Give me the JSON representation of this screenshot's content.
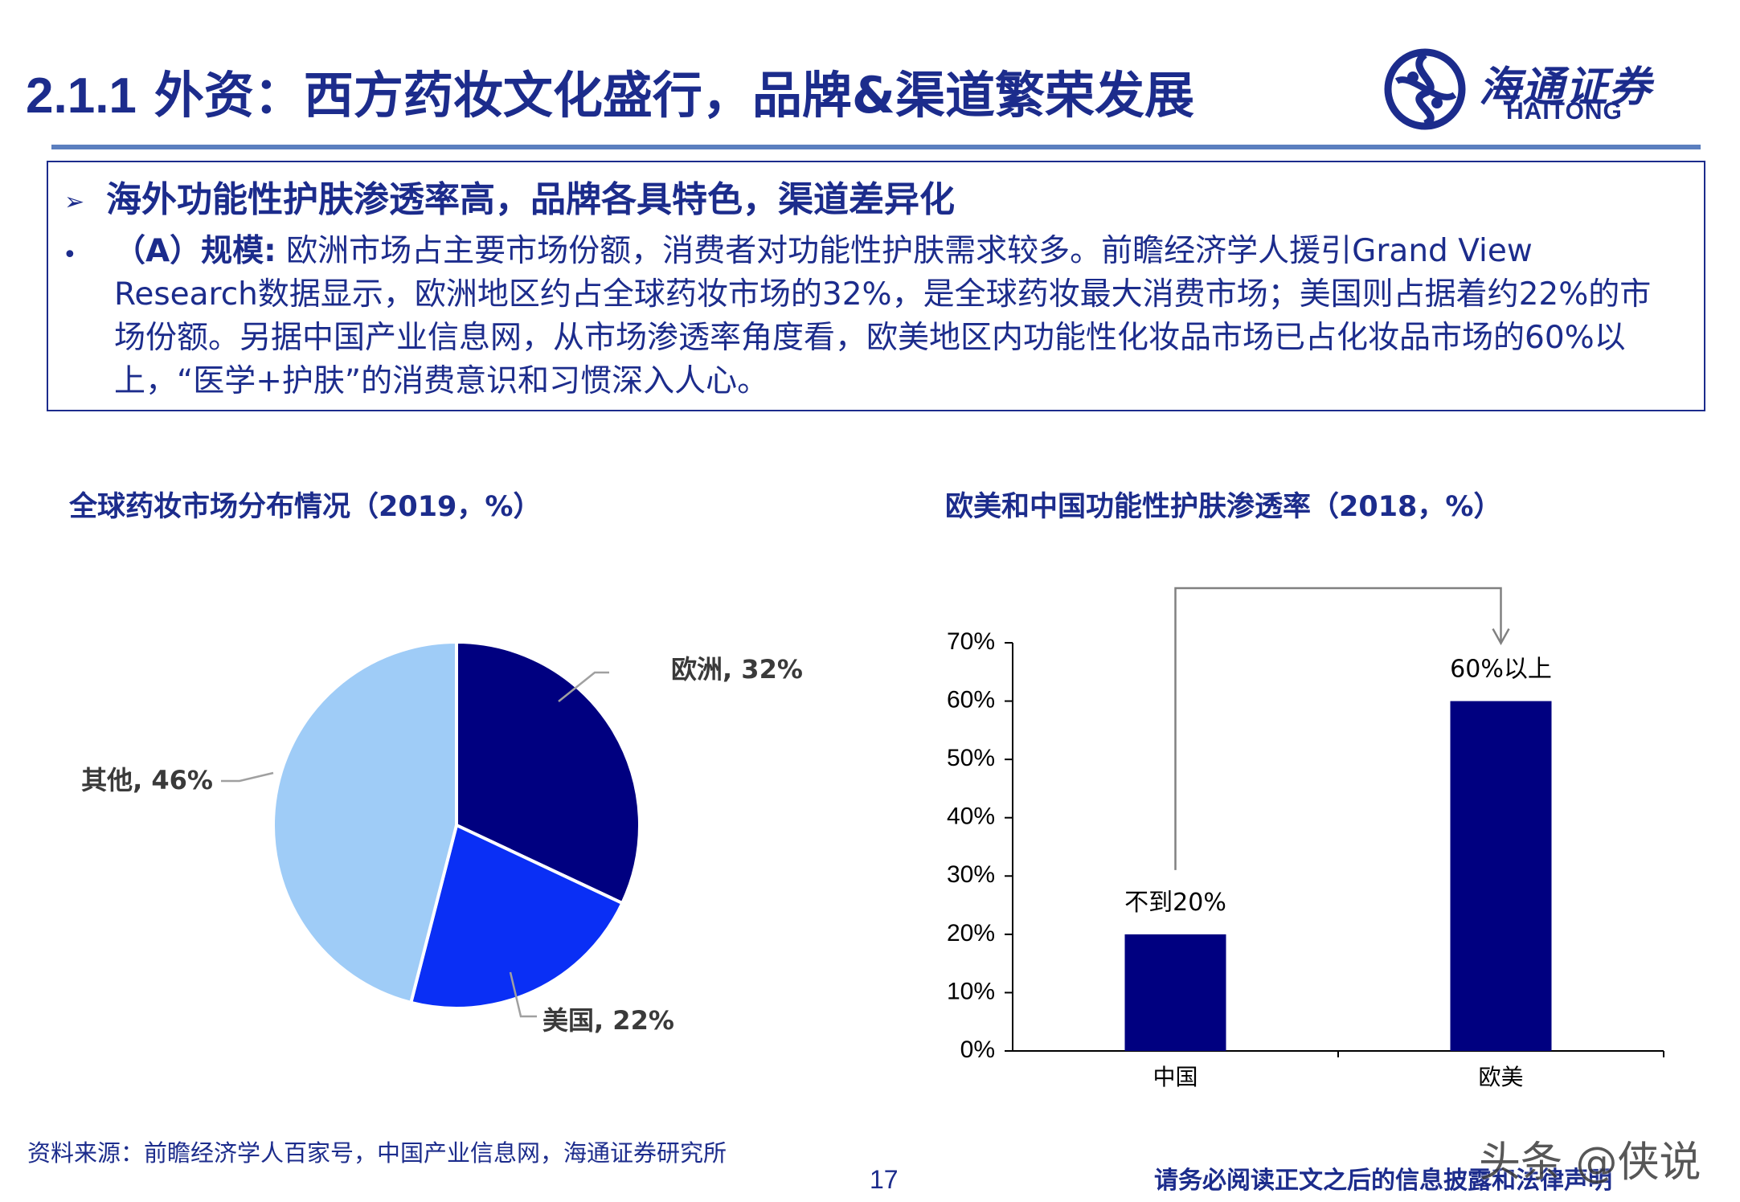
{
  "header": {
    "title_num": "2.1.1",
    "title_text": "外资：西方药妆文化盛行，品牌&渠道繁荣发展",
    "logo_cn": "海通证券",
    "logo_en": "HAITONG",
    "logo_icon": "haitong-swirl-icon"
  },
  "summary": {
    "heading": "海外功能性护肤渗透率高，品牌各具特色，渠道差异化",
    "bullet_label": "（A）规模:",
    "bullet_text": " 欧洲市场占主要市场份额，消费者对功能性护肤需求较多。前瞻经济学人援引Grand View Research数据显示，欧洲地区约占全球药妆市场的32%，是全球药妆最大消费市场；美国则占据着约22%的市场份额。另据中国产业信息网，从市场渗透率角度看，欧美地区内功能性化妆品市场已占化妆品市场的60%以上，“医学+护肤”的消费意识和习惯深入人心。"
  },
  "chart_data": [
    {
      "type": "pie",
      "title": "全球药妆市场分布情况（2019，%）",
      "slices": [
        {
          "name": "欧洲",
          "value": 32,
          "label": "欧洲, 32%",
          "color": "#000080"
        },
        {
          "name": "美国",
          "value": 22,
          "label": "美国, 22%",
          "color": "#0a2ff5"
        },
        {
          "name": "其他",
          "value": 46,
          "label": "其他, 46%",
          "color": "#9fccf7"
        }
      ]
    },
    {
      "type": "bar",
      "title": "欧美和中国功能性护肤渗透率（2018，%）",
      "categories": [
        "中国",
        "欧美"
      ],
      "values": [
        20,
        60
      ],
      "data_labels": [
        "不到20%",
        "60%以上"
      ],
      "ylim": [
        0,
        70
      ],
      "yticks": [
        "0%",
        "10%",
        "20%",
        "30%",
        "40%",
        "50%",
        "60%",
        "70%"
      ],
      "color": "#000080",
      "annotation": "arrow from 中国 bar to 欧美 bar"
    }
  ],
  "footer": {
    "source": "资料来源：前瞻经济学人百家号，中国产业信息网，海通证券研究所",
    "page": "17",
    "disclaimer": "请务必阅读正文之后的信息披露和法律声明",
    "watermark": "头条 @侠说"
  }
}
